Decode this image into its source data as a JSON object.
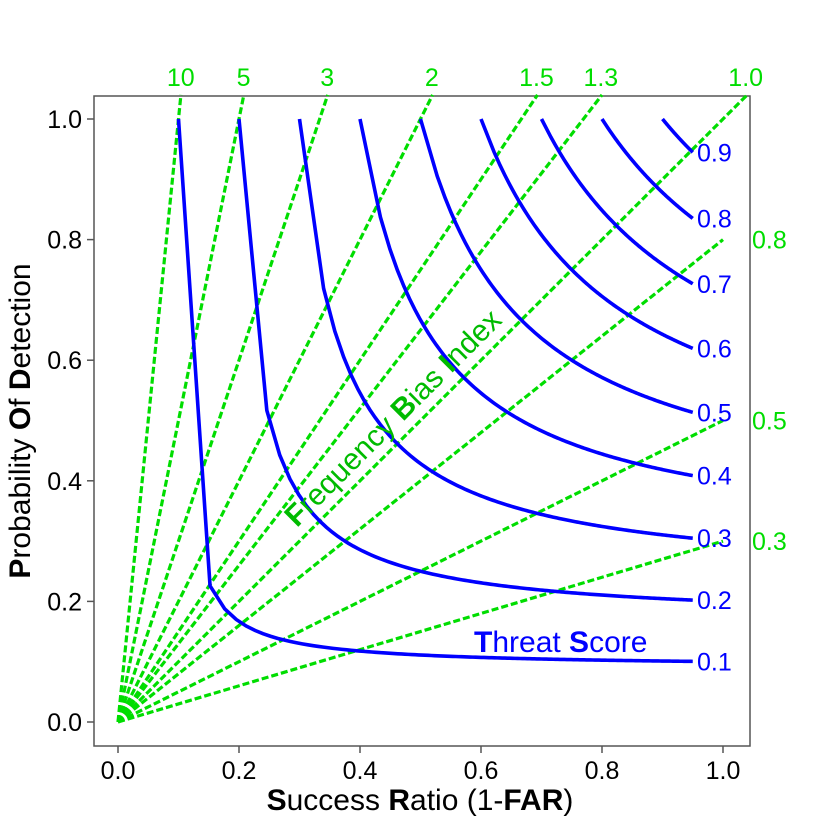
{
  "chart_data": {
    "type": "line",
    "xlim": [
      0,
      1
    ],
    "ylim": [
      0,
      1
    ],
    "grid": false,
    "x_ticks": [
      "0.0",
      "0.2",
      "0.4",
      "0.6",
      "0.8",
      "1.0"
    ],
    "y_ticks": [
      "0.0",
      "0.2",
      "0.4",
      "0.6",
      "0.8",
      "1.0"
    ],
    "xlabel": {
      "parts": [
        [
          "S",
          true
        ],
        [
          "uccess ",
          false
        ],
        [
          "R",
          true
        ],
        [
          "atio (1-",
          false
        ],
        [
          "FAR",
          true
        ],
        [
          ")",
          false
        ]
      ]
    },
    "ylabel": {
      "parts": [
        [
          "P",
          true
        ],
        [
          "robability ",
          false
        ],
        [
          "O",
          true
        ],
        [
          "f ",
          false
        ],
        [
          "D",
          true
        ],
        [
          "etection",
          false
        ]
      ]
    },
    "colors": {
      "threat_score": "#0000ff",
      "frequency_bias": "#00dd00",
      "axis": "#555555"
    },
    "threat_score": {
      "name": {
        "parts": [
          [
            "T",
            true
          ],
          [
            "hreat ",
            false
          ],
          [
            "S",
            true
          ],
          [
            "core",
            false
          ]
        ]
      },
      "values": [
        0.1,
        0.2,
        0.3,
        0.4,
        0.5,
        0.6,
        0.7,
        0.8,
        0.9
      ],
      "labels": [
        "0.1",
        "0.2",
        "0.3",
        "0.4",
        "0.5",
        "0.6",
        "0.7",
        "0.8",
        "0.9"
      ],
      "sr_max": 0.95
    },
    "frequency_bias": {
      "name": {
        "parts": [
          [
            "F",
            true
          ],
          [
            "requency ",
            false
          ],
          [
            "B",
            true
          ],
          [
            "ias ",
            false
          ],
          [
            "I",
            true
          ],
          [
            "ndex",
            false
          ]
        ]
      },
      "values": [
        10,
        5,
        3,
        2,
        1.5,
        1.3,
        1.0,
        0.8,
        0.5,
        0.3
      ],
      "labels": [
        "10",
        "5",
        "3",
        "2",
        "1.5",
        "1.3",
        "1.0",
        "0.8",
        "0.5",
        "0.3"
      ]
    }
  }
}
